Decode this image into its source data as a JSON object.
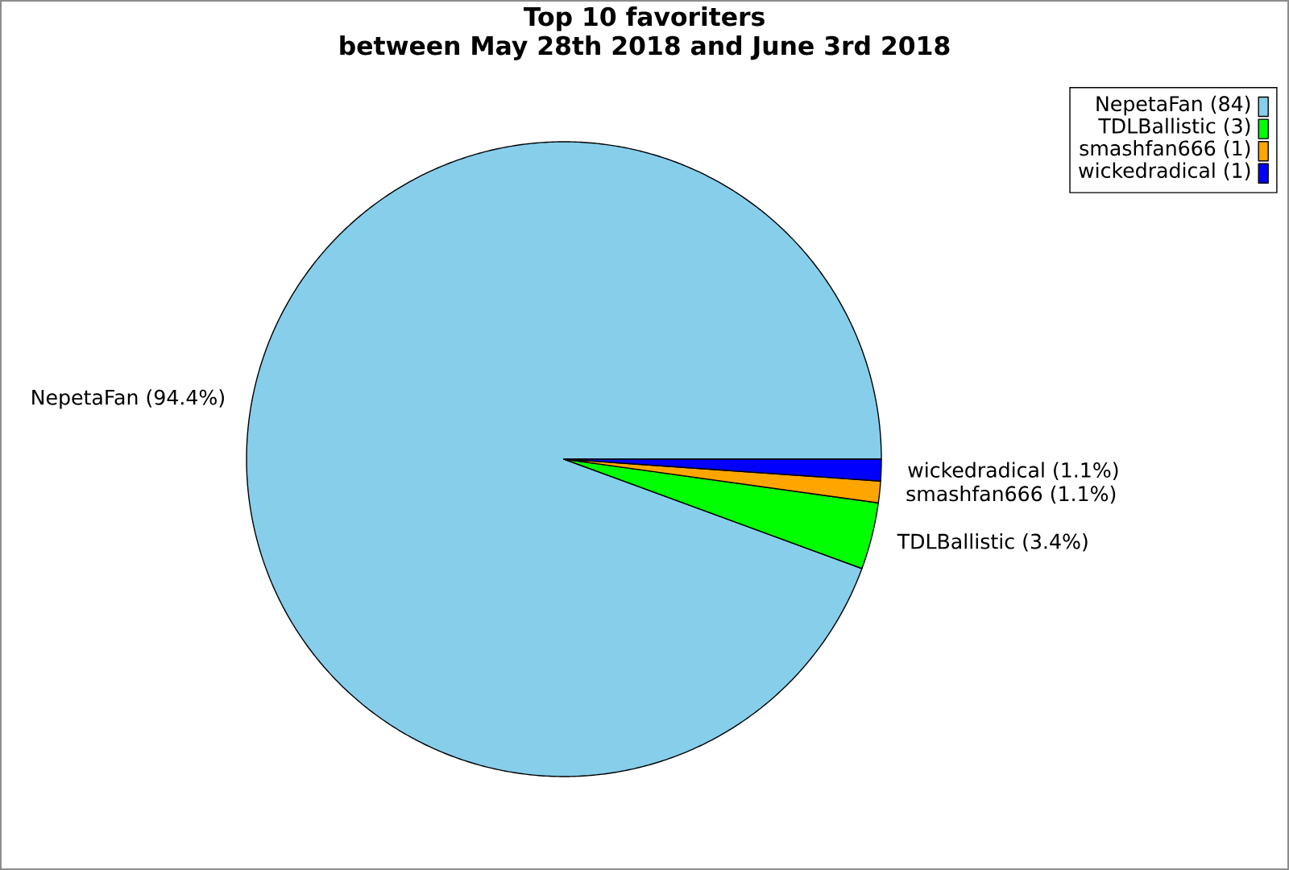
{
  "chart_data": {
    "type": "pie",
    "title": "Top 10 favoriters",
    "subtitle": "between May 28th 2018 and June 3rd 2018",
    "categories": [
      "NepetaFan (84)",
      "TDLBallistic (3)",
      "smashfan666 (1)",
      "wickedradical (1)"
    ],
    "values": [
      94.4,
      3.4,
      1.1,
      1.1
    ],
    "colors": [
      "#87ceeb",
      "#00ff00",
      "#ffa500",
      "#0000ff"
    ],
    "value_labels": [
      "NepetaFan (94.4%)",
      "TDLBallistic (3.4%)",
      "smashfan666 (1.1%)",
      "wickedradical (1.1%)"
    ],
    "legend": "top right"
  }
}
